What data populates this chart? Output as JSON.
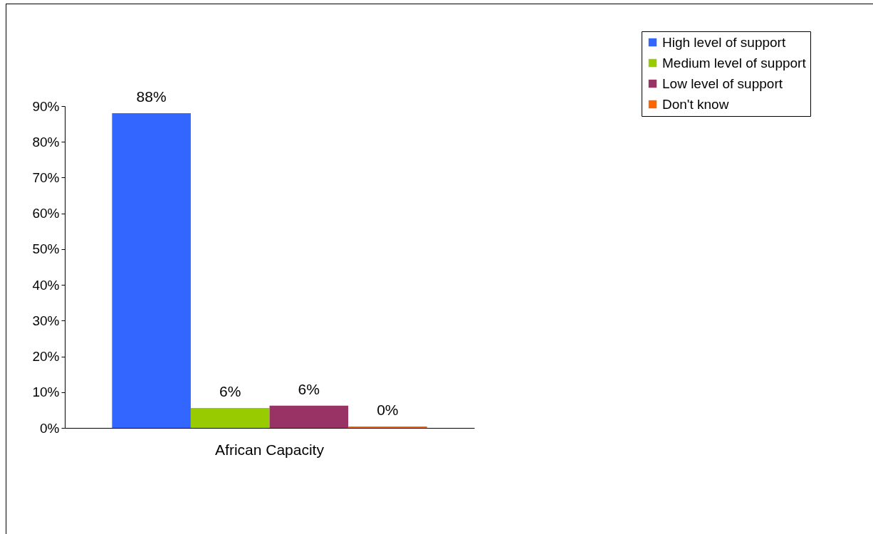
{
  "chart_data": {
    "type": "bar",
    "categories": [
      "African Capacity"
    ],
    "series": [
      {
        "name": "High level of support",
        "color": "#3366ff",
        "values": [
          88
        ],
        "value_labels": [
          "88%"
        ]
      },
      {
        "name": "Medium level of support",
        "color": "#99cc00",
        "values": [
          5.6
        ],
        "value_labels": [
          "6%"
        ]
      },
      {
        "name": "Low level of support",
        "color": "#993366",
        "values": [
          6.2
        ],
        "value_labels": [
          "6%"
        ]
      },
      {
        "name": "Don't know",
        "color": "#ff6600",
        "values": [
          0.4
        ],
        "value_labels": [
          "0%"
        ]
      }
    ],
    "ylim": [
      0,
      90
    ],
    "yticks": [
      {
        "value": 0,
        "label": "0%"
      },
      {
        "value": 10,
        "label": "10%"
      },
      {
        "value": 20,
        "label": "20%"
      },
      {
        "value": 30,
        "label": "30%"
      },
      {
        "value": 40,
        "label": "40%"
      },
      {
        "value": 50,
        "label": "50%"
      },
      {
        "value": 60,
        "label": "60%"
      },
      {
        "value": 70,
        "label": "70%"
      },
      {
        "value": 80,
        "label": "80%"
      },
      {
        "value": 90,
        "label": "90%"
      }
    ],
    "grid": false,
    "legend": "top right"
  }
}
